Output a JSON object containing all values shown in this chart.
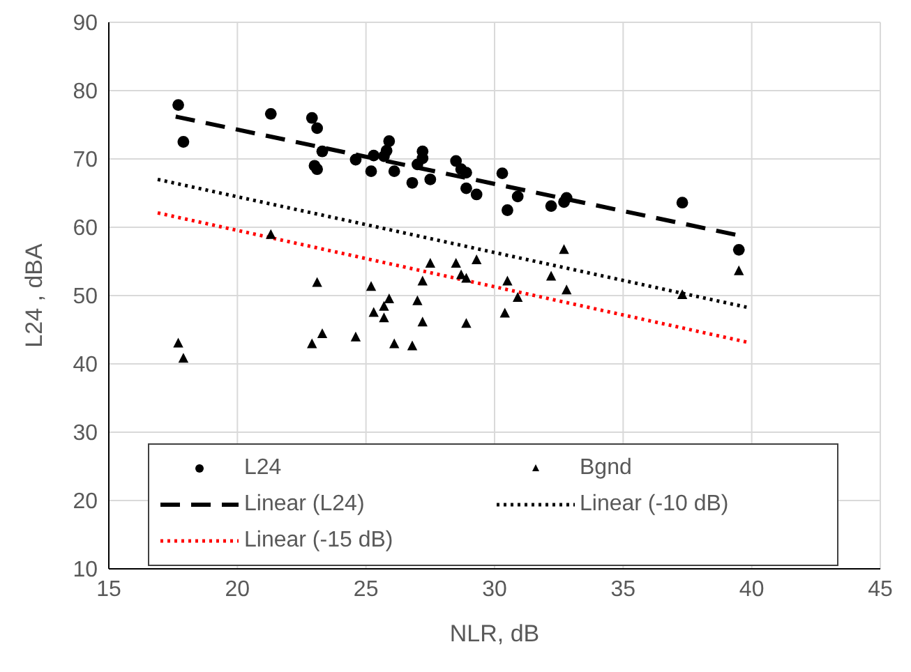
{
  "chart_data": {
    "type": "scatter",
    "xlabel": "NLR, dB",
    "ylabel": "L24 , dBA",
    "xlim": [
      15,
      45
    ],
    "xticks": [
      15,
      20,
      25,
      30,
      35,
      40,
      45
    ],
    "ylim": [
      10,
      90
    ],
    "yticks": [
      10,
      20,
      30,
      40,
      50,
      60,
      70,
      80,
      90
    ],
    "grid": true,
    "legend": "bottom",
    "series": [
      {
        "name": "L24",
        "type": "scatter",
        "marker": "circle",
        "color": "#000000",
        "x": [
          17.7,
          17.9,
          21.3,
          22.9,
          23.1,
          23.3,
          23.0,
          23.1,
          24.6,
          25.2,
          25.3,
          25.7,
          25.8,
          25.9,
          26.1,
          26.8,
          27.0,
          27.2,
          27.2,
          27.5,
          28.5,
          28.7,
          28.9,
          28.9,
          29.3,
          30.3,
          30.9,
          30.5,
          32.2,
          32.7,
          32.8,
          37.3,
          39.5
        ],
        "values": [
          77.9,
          72.5,
          76.6,
          76.0,
          74.5,
          71.1,
          69.0,
          68.5,
          69.9,
          68.2,
          70.5,
          70.4,
          71.2,
          72.6,
          68.2,
          66.5,
          69.2,
          71.1,
          70.1,
          67.0,
          69.7,
          68.5,
          68.0,
          65.7,
          64.8,
          67.9,
          64.5,
          62.5,
          63.1,
          63.7,
          64.3,
          63.6,
          56.7
        ]
      },
      {
        "name": "Bgnd",
        "type": "scatter",
        "marker": "triangle",
        "color": "#000000",
        "x": [
          17.7,
          17.9,
          21.3,
          23.1,
          22.9,
          23.3,
          24.6,
          25.2,
          25.9,
          25.7,
          25.3,
          25.7,
          26.1,
          26.8,
          27.0,
          27.2,
          27.5,
          27.2,
          28.5,
          28.7,
          28.9,
          29.3,
          28.9,
          30.5,
          30.9,
          30.4,
          32.2,
          32.7,
          32.8,
          37.3,
          39.5
        ],
        "values": [
          43.0,
          40.8,
          58.9,
          51.9,
          42.9,
          44.4,
          43.9,
          51.3,
          49.5,
          48.4,
          47.5,
          46.7,
          42.9,
          42.6,
          49.2,
          52.1,
          54.7,
          46.1,
          54.7,
          53.0,
          52.5,
          55.2,
          45.9,
          52.1,
          49.7,
          47.4,
          52.8,
          56.7,
          50.8,
          50.1,
          53.6
        ]
      },
      {
        "name": "Linear (L24)",
        "type": "line",
        "line_style": "dashed",
        "color": "#000000",
        "x": [
          17.6,
          39.5
        ],
        "values": [
          76.2,
          58.8
        ]
      },
      {
        "name": "Linear (-10 dB)",
        "type": "line",
        "line_style": "dotted",
        "color": "#000000",
        "x": [
          16.9,
          39.8
        ],
        "values": [
          67.0,
          48.3
        ]
      },
      {
        "name": "Linear (-15 dB)",
        "type": "line",
        "line_style": "dotted",
        "color": "#ff0000",
        "x": [
          16.9,
          39.8
        ],
        "values": [
          62.1,
          43.2
        ]
      }
    ]
  }
}
